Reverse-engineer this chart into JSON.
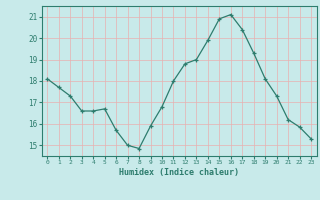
{
  "x": [
    0,
    1,
    2,
    3,
    4,
    5,
    6,
    7,
    8,
    9,
    10,
    11,
    12,
    13,
    14,
    15,
    16,
    17,
    18,
    19,
    20,
    21,
    22,
    23
  ],
  "y": [
    18.1,
    17.7,
    17.3,
    16.6,
    16.6,
    16.7,
    15.7,
    15.0,
    14.85,
    15.9,
    16.8,
    18.0,
    18.8,
    19.0,
    19.9,
    20.9,
    21.1,
    20.4,
    19.3,
    18.1,
    17.3,
    16.2,
    15.85,
    15.3
  ],
  "line_color": "#2e7d6e",
  "bg_color": "#c8eaea",
  "grid_color": "#e0e0e0",
  "tick_color": "#2e7d6e",
  "label_color": "#2e7d6e",
  "xlabel": "Humidex (Indice chaleur)",
  "ylim": [
    14.5,
    21.5
  ],
  "xlim": [
    -0.5,
    23.5
  ],
  "yticks": [
    15,
    16,
    17,
    18,
    19,
    20,
    21
  ],
  "xticks": [
    0,
    1,
    2,
    3,
    4,
    5,
    6,
    7,
    8,
    9,
    10,
    11,
    12,
    13,
    14,
    15,
    16,
    17,
    18,
    19,
    20,
    21,
    22,
    23
  ]
}
